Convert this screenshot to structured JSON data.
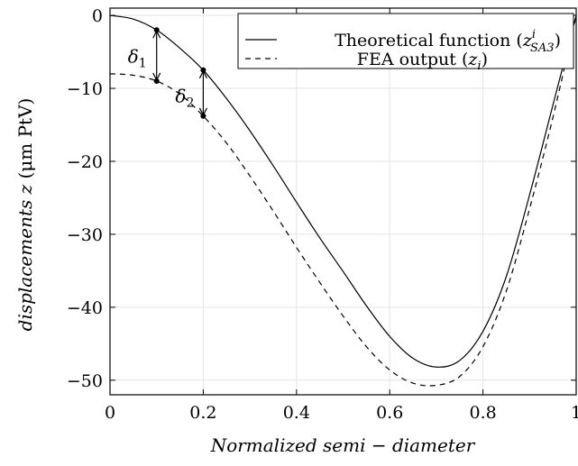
{
  "chart_data": {
    "type": "line",
    "xlabel": "Normalized semi − diameter",
    "ylabel_italic": "displacements  z",
    "ylabel_unit": " (μm PtV)",
    "xlim": [
      0,
      1
    ],
    "ylim": [
      -52,
      1
    ],
    "xticks": [
      0,
      0.2,
      0.4,
      0.6,
      0.8,
      1
    ],
    "xtick_labels": [
      "0",
      "0.2",
      "0.4",
      "0.6",
      "0.8",
      "1"
    ],
    "yticks": [
      0,
      -10,
      -20,
      -30,
      -40,
      -50
    ],
    "ytick_labels": [
      "0",
      "−10",
      "−20",
      "−30",
      "−40",
      "−50"
    ],
    "grid": true,
    "legend_position": "top-right",
    "series": [
      {
        "name": "Theoretical function (z^i_SA3)",
        "legend_main": "Theoretical function (",
        "legend_var": "z",
        "legend_sup": "i",
        "legend_sub": "SA3",
        "legend_close": ")",
        "style": "solid",
        "x": [
          0,
          0.05,
          0.1,
          0.15,
          0.2,
          0.25,
          0.3,
          0.35,
          0.4,
          0.45,
          0.5,
          0.55,
          0.6,
          0.65,
          0.7,
          0.75,
          0.8,
          0.85,
          0.9,
          0.95,
          1.0
        ],
        "values": [
          0,
          -0.5,
          -2,
          -4.5,
          -7.5,
          -11.4,
          -15.8,
          -20.6,
          -25.6,
          -30.5,
          -35.1,
          -39.8,
          -44.0,
          -47.0,
          -48.2,
          -47.3,
          -43.3,
          -35.8,
          -24.6,
          -12.3,
          0
        ]
      },
      {
        "name": "FEA output (z_i)",
        "legend_main": "FEA output (",
        "legend_var": "z",
        "legend_sub": "i",
        "legend_close": ")",
        "style": "dashed",
        "x": [
          0,
          0.05,
          0.1,
          0.15,
          0.2,
          0.25,
          0.3,
          0.35,
          0.4,
          0.45,
          0.5,
          0.55,
          0.6,
          0.65,
          0.7,
          0.75,
          0.8,
          0.85,
          0.9,
          0.95,
          1.0
        ],
        "values": [
          -8,
          -8.2,
          -9,
          -10.8,
          -13.8,
          -17.5,
          -22,
          -26.8,
          -31.8,
          -36.6,
          -41.2,
          -45.4,
          -48.6,
          -50.4,
          -50.7,
          -49.5,
          -45.4,
          -37.8,
          -26.5,
          -14,
          0
        ]
      }
    ],
    "annotations": [
      {
        "label": "δ",
        "sub": "1",
        "x": 0.1,
        "y_top": -2,
        "y_bottom": -9
      },
      {
        "label": "δ",
        "sub": "2",
        "x": 0.2,
        "y_top": -7.5,
        "y_bottom": -13.8
      }
    ]
  }
}
